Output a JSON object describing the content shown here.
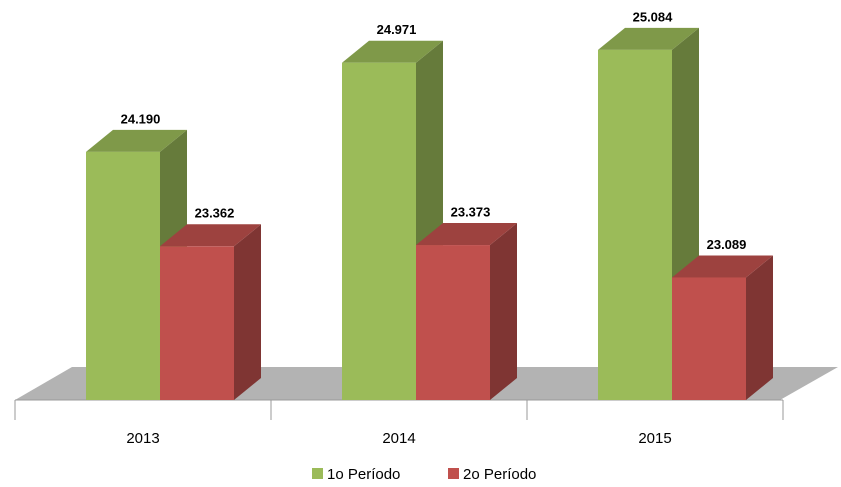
{
  "chart_data": {
    "type": "bar3d",
    "categories": [
      "2013",
      "2014",
      "2015"
    ],
    "series": [
      {
        "name": "1o Período",
        "color": "#9bbb59",
        "values": [
          24190,
          24971,
          25084
        ],
        "value_labels": [
          "24.190",
          "24.971",
          "25.084"
        ]
      },
      {
        "name": "2o Período",
        "color": "#c0504d",
        "values": [
          23362,
          23373,
          23089
        ],
        "value_labels": [
          "23.362",
          "23.373",
          "23.089"
        ]
      }
    ],
    "ylim": [
      22015,
      25100
    ]
  }
}
